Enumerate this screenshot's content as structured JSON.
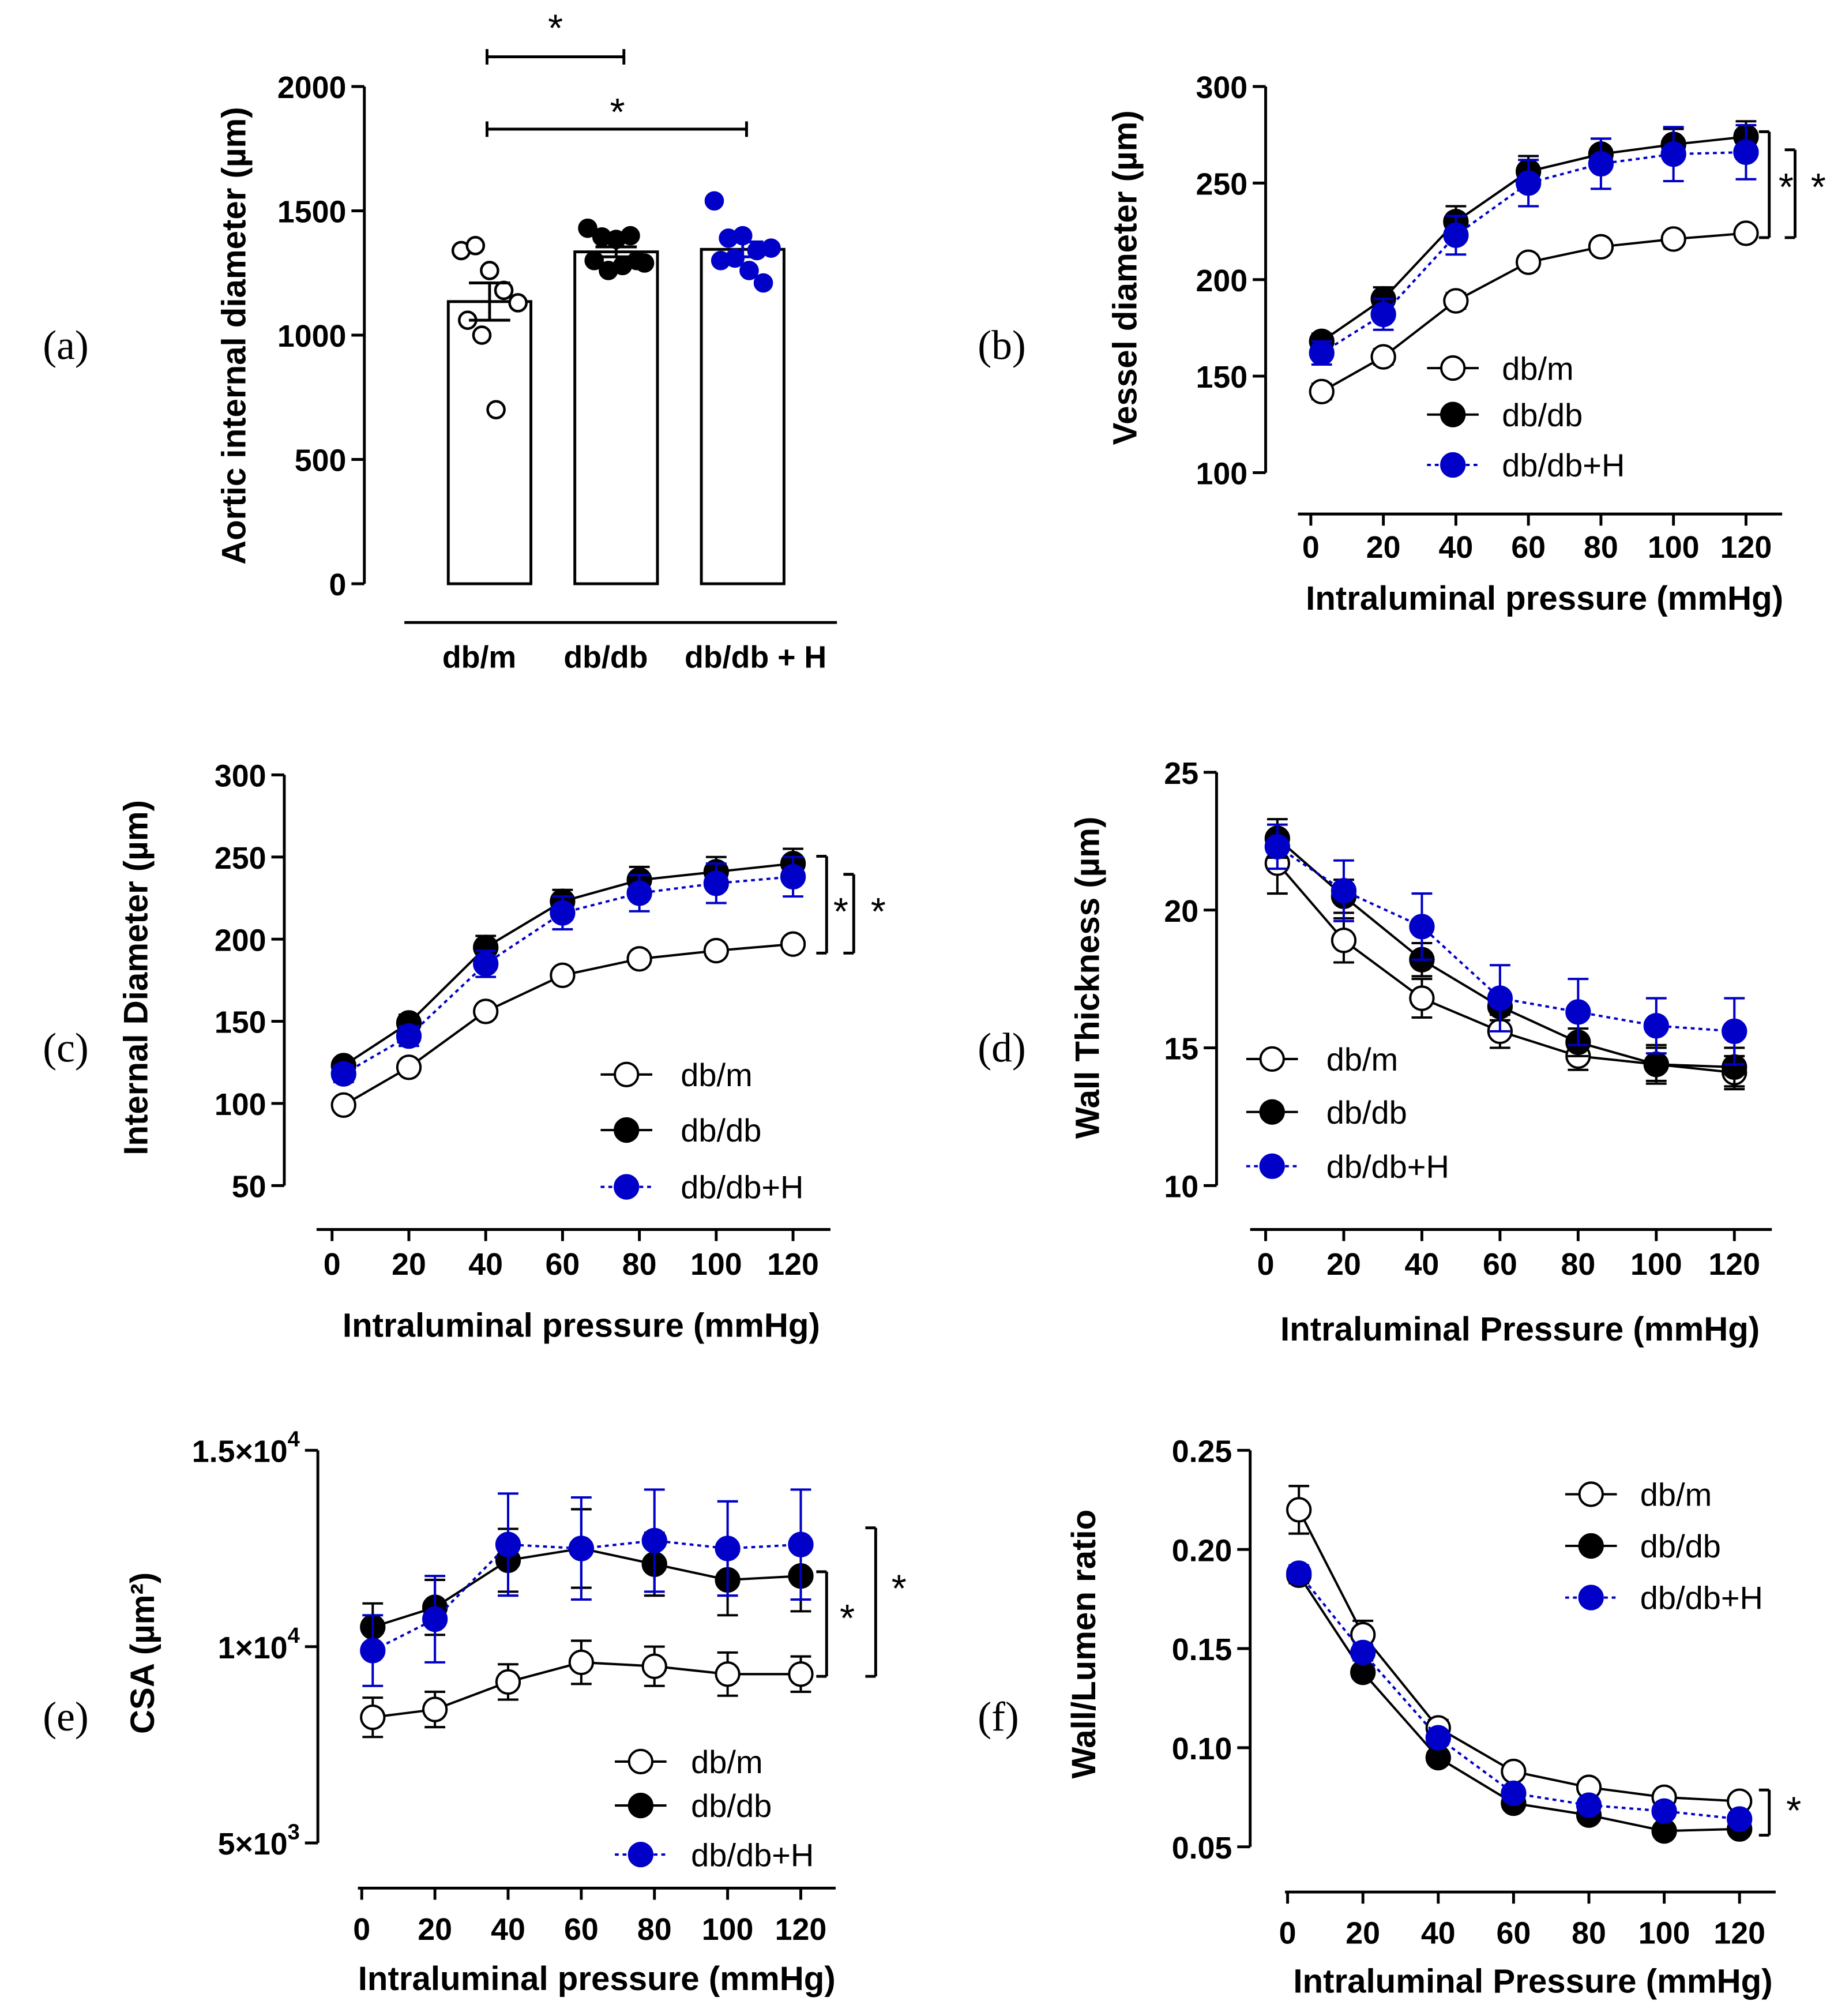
{
  "colors": {
    "db_m": "#ffffff",
    "db_db": "#000000",
    "db_db_H": "#0000c8"
  },
  "chart_data": [
    {
      "panel": "(a)",
      "type": "bar",
      "categories": [
        "db/m",
        "db/db",
        "db/db + H"
      ],
      "ylabel": "Aortic internal diameter (µm)",
      "ylim": [
        0,
        2000
      ],
      "yticks": [
        "0",
        "500",
        "1000",
        "1500",
        "2000"
      ],
      "values": [
        1135,
        1335,
        1345
      ],
      "sem": [
        75,
        20,
        30
      ],
      "points": [
        [
          1340,
          1360,
          1260,
          1180,
          1130,
          1060,
          1000,
          700
        ],
        [
          1430,
          1395,
          1385,
          1400,
          1290,
          1300,
          1260,
          1280,
          1300
        ],
        [
          1540,
          1390,
          1400,
          1340,
          1350,
          1300,
          1310,
          1260,
          1210
        ]
      ],
      "significance": [
        {
          "from": "db/m",
          "to": "db/db",
          "label": "*"
        },
        {
          "from": "db/m",
          "to": "db/db + H",
          "label": "*"
        }
      ]
    },
    {
      "panel": "(b)",
      "type": "line",
      "xlabel": "Intraluminal pressure (mmHg)",
      "ylabel": "Vessel diameter (µm)",
      "x": [
        3,
        20,
        40,
        60,
        80,
        100,
        120
      ],
      "xticks": [
        "0",
        "20",
        "40",
        "60",
        "80",
        "100",
        "120"
      ],
      "ylim": [
        100,
        300
      ],
      "yticks": [
        "100",
        "150",
        "200",
        "250",
        "300"
      ],
      "series": [
        {
          "name": "db/m",
          "values": [
            142,
            160,
            189,
            209,
            217,
            221,
            224
          ],
          "sem": [
            4,
            4,
            4,
            3,
            3,
            3,
            3
          ]
        },
        {
          "name": "db/db",
          "values": [
            168,
            190,
            230,
            256,
            265,
            270,
            274
          ],
          "sem": [
            4,
            6,
            8,
            8,
            8,
            8,
            8
          ]
        },
        {
          "name": "db/db+H",
          "values": [
            162,
            182,
            223,
            250,
            260,
            265,
            266
          ],
          "sem": [
            6,
            8,
            10,
            12,
            13,
            14,
            14
          ]
        }
      ],
      "significance": [
        "*",
        "*"
      ]
    },
    {
      "panel": "(c)",
      "type": "line",
      "xlabel": "Intraluminal pressure (mmHg)",
      "ylabel": "Internal Diameter  (µm)",
      "x": [
        3,
        20,
        40,
        60,
        80,
        100,
        120
      ],
      "xticks": [
        "0",
        "20",
        "40",
        "60",
        "80",
        "100",
        "120"
      ],
      "ylim": [
        50,
        300
      ],
      "yticks": [
        "50",
        "100",
        "150",
        "200",
        "250",
        "300"
      ],
      "series": [
        {
          "name": "db/m",
          "values": [
            99,
            122,
            156,
            178,
            188,
            193,
            197
          ],
          "sem": [
            3,
            3,
            3,
            3,
            3,
            3,
            3
          ]
        },
        {
          "name": "db/db",
          "values": [
            123,
            149,
            195,
            223,
            236,
            241,
            246
          ],
          "sem": [
            4,
            5,
            7,
            7,
            8,
            9,
            9
          ]
        },
        {
          "name": "db/db+H",
          "values": [
            118,
            141,
            185,
            216,
            228,
            234,
            238
          ],
          "sem": [
            5,
            6,
            8,
            10,
            11,
            12,
            12
          ]
        }
      ],
      "significance": [
        "*",
        "*"
      ]
    },
    {
      "panel": "(d)",
      "type": "line",
      "xlabel": "Intraluminal Pressure (mmHg)",
      "ylabel": "Wall Thickness (µm)",
      "x": [
        3,
        20,
        40,
        60,
        80,
        100,
        120
      ],
      "xticks": [
        "0",
        "20",
        "40",
        "60",
        "80",
        "100",
        "120"
      ],
      "ylim": [
        10,
        25
      ],
      "yticks": [
        "10",
        "15",
        "20",
        "25"
      ],
      "series": [
        {
          "name": "db/m",
          "values": [
            21.7,
            18.9,
            16.8,
            15.6,
            14.7,
            14.4,
            14.1
          ],
          "sem": [
            1.1,
            0.8,
            0.7,
            0.6,
            0.5,
            0.6,
            0.6
          ]
        },
        {
          "name": "db/db",
          "values": [
            22.6,
            20.5,
            18.2,
            16.5,
            15.2,
            14.4,
            14.3
          ],
          "sem": [
            0.7,
            0.6,
            0.6,
            0.5,
            0.5,
            0.7,
            0.7
          ]
        },
        {
          "name": "db/db+H",
          "values": [
            22.3,
            20.7,
            19.4,
            16.8,
            16.3,
            15.8,
            15.6
          ],
          "sem": [
            0.8,
            1.1,
            1.2,
            1.2,
            1.2,
            1.0,
            1.2
          ]
        }
      ]
    },
    {
      "panel": "(e)",
      "type": "line",
      "xlabel": "Intraluminal pressure (mmHg)",
      "ylabel": "CSA (µm²)",
      "x": [
        3,
        20,
        40,
        60,
        80,
        100,
        120
      ],
      "xticks": [
        "0",
        "20",
        "40",
        "60",
        "80",
        "100",
        "120"
      ],
      "ylim": [
        5000,
        15000
      ],
      "yticks": [
        [
          "5×10",
          "3"
        ],
        [
          "1×10",
          "4"
        ],
        [
          "1.5×10",
          "4"
        ]
      ],
      "ytick_values": [
        5000,
        10000,
        15000
      ],
      "series": [
        {
          "name": "db/m",
          "values": [
            8200,
            8400,
            9100,
            9600,
            9500,
            9300,
            9300
          ],
          "sem": [
            500,
            450,
            450,
            550,
            500,
            550,
            450
          ]
        },
        {
          "name": "db/db",
          "values": [
            10500,
            11000,
            12200,
            12500,
            12100,
            11700,
            11800
          ],
          "sem": [
            600,
            700,
            800,
            1000,
            800,
            900,
            900
          ]
        },
        {
          "name": "db/db+H",
          "values": [
            9900,
            10700,
            12600,
            12500,
            12700,
            12500,
            12600
          ],
          "sem": [
            900,
            1100,
            1300,
            1300,
            1300,
            1200,
            1400
          ]
        }
      ],
      "significance": [
        "*",
        "*"
      ]
    },
    {
      "panel": "(f)",
      "type": "line",
      "xlabel": "Intraluminal Pressure (mmHg)",
      "ylabel": "Wall/Lumen ratio",
      "x": [
        3,
        20,
        40,
        60,
        80,
        100,
        120
      ],
      "xticks": [
        "0",
        "20",
        "40",
        "60",
        "80",
        "100",
        "120"
      ],
      "ylim": [
        0.05,
        0.25
      ],
      "yticks": [
        "0.05",
        "0.10",
        "0.15",
        "0.20",
        "0.25"
      ],
      "series": [
        {
          "name": "db/m",
          "values": [
            0.22,
            0.157,
            0.11,
            0.088,
            0.08,
            0.075,
            0.073
          ],
          "sem": [
            0.012,
            0.007,
            0.004,
            0.003,
            0.003,
            0.003,
            0.003
          ]
        },
        {
          "name": "db/db",
          "values": [
            0.187,
            0.138,
            0.095,
            0.072,
            0.066,
            0.058,
            0.059
          ],
          "sem": [
            0.004,
            0.003,
            0.003,
            0.002,
            0.002,
            0.002,
            0.002
          ]
        },
        {
          "name": "db/db+H",
          "values": [
            0.188,
            0.148,
            0.105,
            0.077,
            0.071,
            0.068,
            0.064
          ],
          "sem": [
            0.004,
            0.004,
            0.003,
            0.003,
            0.003,
            0.003,
            0.003
          ]
        }
      ],
      "significance": [
        "*"
      ]
    }
  ]
}
